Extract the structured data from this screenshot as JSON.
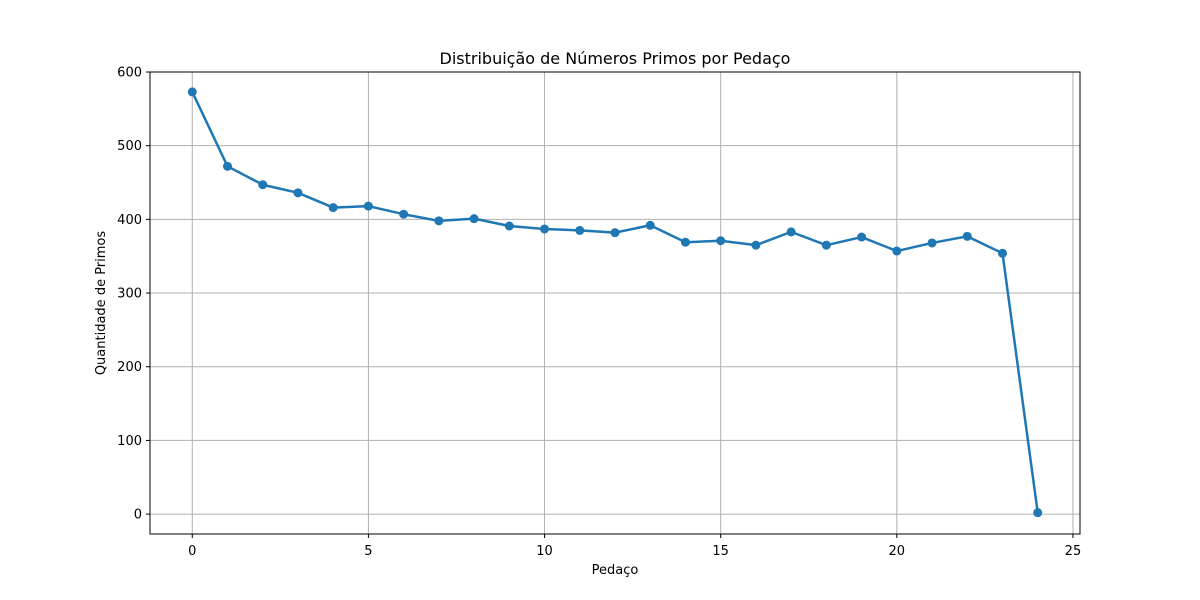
{
  "chart_data": {
    "type": "line",
    "title": "Distribuição de Números Primos por Pedaço",
    "xlabel": "Pedaço",
    "ylabel": "Quantidade de Primos",
    "xlim": [
      -1.2,
      25.2
    ],
    "ylim": [
      -27,
      600
    ],
    "xticks": [
      0,
      5,
      10,
      15,
      20,
      25
    ],
    "yticks": [
      0,
      100,
      200,
      300,
      400,
      500,
      600
    ],
    "grid": true,
    "color": "#1f77b4",
    "grid_color": "#b0b0b0",
    "marker": "circle",
    "series": [
      {
        "x": [
          0,
          1,
          2,
          3,
          4,
          5,
          6,
          7,
          8,
          9,
          10,
          11,
          12,
          13,
          14,
          15,
          16,
          17,
          18,
          19,
          20,
          21,
          22,
          23,
          24
        ],
        "values": [
          573,
          472,
          447,
          436,
          416,
          418,
          407,
          398,
          401,
          391,
          387,
          385,
          382,
          392,
          369,
          371,
          365,
          383,
          365,
          376,
          357,
          368,
          377,
          354,
          2
        ]
      }
    ]
  }
}
